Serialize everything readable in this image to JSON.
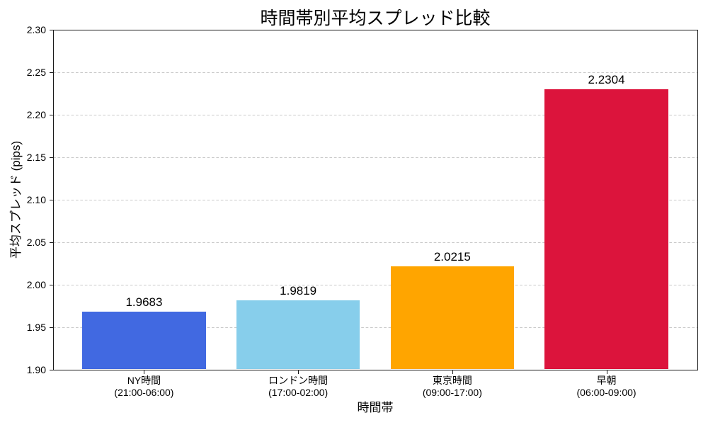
{
  "chart_data": {
    "type": "bar",
    "title": "時間帯別平均スプレッド比較",
    "xlabel": "時間帯",
    "ylabel": "平均スプレッド (pips)",
    "categories": [
      {
        "label": "NY時間",
        "sublabel": "(21:00-06:00)"
      },
      {
        "label": "ロンドン時間",
        "sublabel": "(17:00-02:00)"
      },
      {
        "label": "東京時間",
        "sublabel": "(09:00-17:00)"
      },
      {
        "label": "早朝",
        "sublabel": "(06:00-09:00)"
      }
    ],
    "values": [
      1.9683,
      1.9819,
      2.0215,
      2.2304
    ],
    "value_labels": [
      "1.9683",
      "1.9819",
      "2.0215",
      "2.2304"
    ],
    "bar_colors": [
      "#4169e1",
      "#87ceeb",
      "#ffa500",
      "#dc143c"
    ],
    "ylim": [
      1.9,
      2.3
    ],
    "ytick_step": 0.05,
    "ytick_labels": [
      "1.90",
      "1.95",
      "2.00",
      "2.05",
      "2.10",
      "2.15",
      "2.20",
      "2.25",
      "2.30"
    ],
    "grid": "horizontal dashed",
    "grid_color": "#c9c9c9",
    "legend_position": "none",
    "background_color": "#ffffff",
    "text_color": "#000000"
  }
}
